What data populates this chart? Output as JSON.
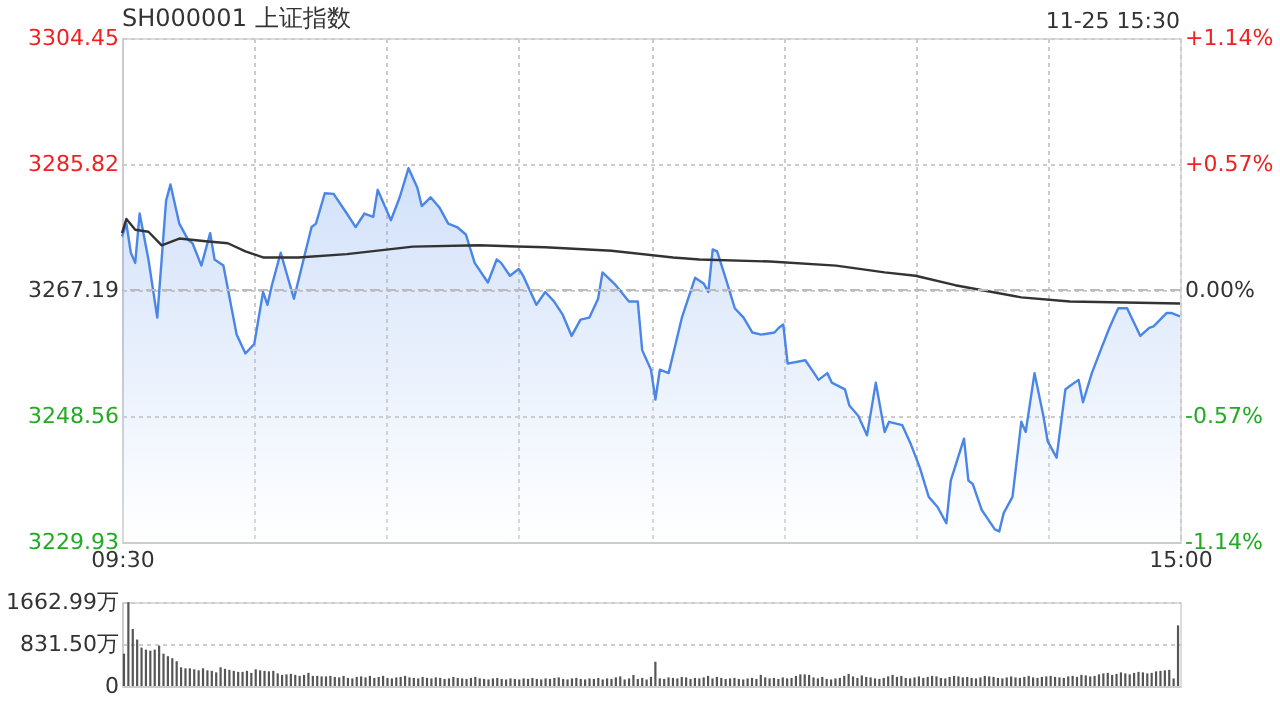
{
  "chart_data": [
    {
      "type": "line",
      "title": "SH000001 上证指数",
      "annotations": [
        "11-25 15:30"
      ],
      "categories": [
        "09:30",
        null,
        null,
        null,
        null,
        null,
        null,
        null,
        null,
        null,
        null,
        null,
        null,
        null,
        null,
        null,
        null,
        null,
        null,
        null,
        null,
        null,
        null,
        null,
        null,
        null,
        null,
        null,
        null,
        null,
        null,
        null,
        null,
        null,
        null,
        null,
        null,
        null,
        null,
        null,
        null,
        null,
        null,
        null,
        null,
        null,
        null,
        null,
        null,
        null,
        null,
        null,
        null,
        null,
        null,
        null,
        null,
        null,
        null,
        null,
        null,
        null,
        null,
        null,
        null,
        null,
        null,
        null,
        null,
        null,
        null,
        null,
        null,
        null,
        null,
        null,
        null,
        null,
        null,
        null,
        null,
        null,
        null,
        null,
        null,
        null,
        null,
        null,
        null,
        null,
        null,
        null,
        null,
        null,
        null,
        null,
        null,
        null,
        null,
        null,
        null,
        null,
        null,
        null,
        null,
        null,
        null,
        null,
        null,
        null,
        null,
        null,
        null,
        null,
        null,
        null,
        null,
        null,
        null,
        null,
        null,
        null,
        null,
        null,
        null,
        null,
        null,
        null,
        null,
        null,
        null,
        null,
        null,
        null,
        null,
        null,
        null,
        null,
        null,
        null,
        null,
        null,
        null,
        null,
        null,
        null,
        null,
        null,
        null,
        null,
        null,
        null,
        null,
        null,
        null,
        null,
        null,
        null,
        null,
        null,
        null,
        null,
        null,
        null,
        null,
        null,
        null,
        null,
        null,
        null,
        null,
        null,
        null,
        null,
        null,
        null,
        null,
        null,
        null,
        null,
        null,
        null,
        null,
        null,
        null,
        null,
        null,
        null,
        null,
        null,
        null,
        null,
        null,
        null,
        null,
        null,
        null,
        null,
        null,
        null,
        null,
        null,
        null,
        null,
        null,
        null,
        null,
        null,
        null,
        null,
        null,
        null,
        null,
        null,
        null,
        null,
        null,
        null,
        null,
        null,
        null,
        null,
        null,
        null,
        null,
        null,
        null,
        null,
        null,
        null,
        null,
        null,
        null,
        null,
        null,
        null,
        null,
        null,
        null,
        null,
        "15:00"
      ],
      "ylim": [
        3229.93,
        3304.45
      ],
      "yticks": [
        3229.93,
        3248.56,
        3267.19,
        3285.82,
        3304.45
      ],
      "y2lim": [
        -1.14,
        1.14
      ],
      "y2ticks": [
        {
          "value": -1.14,
          "label": "-1.14%"
        },
        {
          "value": -0.57,
          "label": "-0.57%"
        },
        {
          "value": 0,
          "label": "0.00%"
        },
        {
          "value": 0.57,
          "label": "+0.57%"
        },
        {
          "value": 1.14,
          "label": "+1.14%"
        }
      ],
      "grid": true,
      "ref_lines": [
        {
          "axis": "y",
          "value": 3267.19,
          "line_style": "dashed",
          "color": "#bbbbbb"
        }
      ],
      "series": [
        {
          "type": "area",
          "color": "#4a86e8",
          "values": [
            3275.1,
            3277.0,
            3272.7,
            3271.2,
            3278.5,
            null,
            3271.7,
            null,
            3263.1,
            null,
            3280.4,
            3282.8,
            null,
            3277.0,
            null,
            3274.6,
            3274.1,
            null,
            3270.8,
            null,
            3275.6,
            3271.7,
            null,
            3270.8,
            null,
            null,
            3260.6,
            null,
            3257.8,
            null,
            3259.2,
            null,
            3266.9,
            3265.0,
            3267.9,
            null,
            3272.7,
            null,
            null,
            3265.9,
            null,
            null,
            null,
            3276.5,
            3277.0,
            null,
            3281.5,
            null,
            3281.4,
            null,
            null,
            3278.5,
            null,
            3276.5,
            null,
            3278.5,
            null,
            3278.0,
            3282.0,
            null,
            null,
            3277.5,
            null,
            3280.9,
            null,
            3285.2,
            null,
            3282.3,
            3279.6,
            null,
            3280.9,
            null,
            3279.4,
            null,
            3277.0,
            null,
            3276.5,
            null,
            3275.4,
            null,
            3271.2,
            null,
            null,
            3268.3,
            null,
            3271.7,
            3271.2,
            null,
            3269.3,
            null,
            3270.3,
            3269.3,
            null,
            null,
            3265.0,
            null,
            3266.9,
            null,
            3265.5,
            null,
            3263.5,
            null,
            3260.4,
            null,
            3262.8,
            null,
            3263.1,
            null,
            3265.9,
            3269.8,
            null,
            null,
            3267.9,
            null,
            null,
            3265.5,
            null,
            3265.5,
            3258.3,
            null,
            3255.4,
            3251.0,
            3255.4,
            null,
            3254.9,
            null,
            null,
            3263.1,
            null,
            null,
            3269.0,
            null,
            3268.1,
            3266.9,
            3273.2,
            3272.9,
            null,
            3268.8,
            null,
            3264.5,
            null,
            3263.1,
            null,
            3260.9,
            null,
            3260.6,
            null,
            null,
            3260.9,
            3261.6,
            3262.1,
            3256.3,
            null,
            null,
            null,
            3256.8,
            null,
            3254.9,
            3253.9,
            null,
            3254.9,
            3253.5,
            null,
            null,
            3252.5,
            3250.1,
            null,
            3248.6,
            null,
            3245.7,
            null,
            3253.5,
            null,
            3246.2,
            3247.7,
            null,
            null,
            3247.2,
            null,
            3244.3,
            null,
            3240.9,
            null,
            3236.6,
            null,
            3235.1,
            null,
            3232.7,
            3239.0,
            null,
            null,
            3245.2,
            3239.0,
            3238.5,
            null,
            3234.7,
            null,
            null,
            3231.8,
            3231.5,
            3234.2,
            null,
            3236.6,
            null,
            3247.7,
            3246.2,
            null,
            3254.9,
            null,
            3248.6,
            3244.8,
            null,
            3242.4,
            null,
            3252.5,
            3253.0,
            null,
            3253.9,
            3250.6,
            null,
            3254.9,
            null,
            3258.3,
            null,
            3261.6,
            3263.1,
            3264.5,
            null,
            3264.5,
            null,
            null,
            3260.4,
            null,
            3261.6,
            3261.8,
            null,
            null,
            3263.8,
            3263.8,
            null,
            3263.3
          ]
        },
        {
          "type": "line",
          "color": "#333333",
          "values": [
            3275.6,
            3277.7,
            null,
            3276.1,
            null,
            null,
            3275.8,
            null,
            null,
            3273.8,
            null,
            null,
            null,
            3274.8,
            null,
            null,
            null,
            null,
            null,
            3274.4,
            null,
            null,
            null,
            null,
            3274.1,
            null,
            null,
            null,
            3272.9,
            null,
            null,
            null,
            3272.0,
            null,
            null,
            null,
            null,
            null,
            null,
            null,
            3272.0,
            null,
            null,
            null,
            null,
            null,
            null,
            null,
            null,
            null,
            null,
            3272.5,
            null,
            null,
            null,
            null,
            null,
            null,
            null,
            null,
            null,
            null,
            null,
            null,
            null,
            null,
            3273.6,
            null,
            null,
            null,
            null,
            null,
            null,
            null,
            null,
            null,
            null,
            null,
            null,
            null,
            null,
            3273.8,
            null,
            null,
            null,
            null,
            null,
            null,
            null,
            null,
            null,
            null,
            null,
            null,
            null,
            null,
            3273.5,
            null,
            null,
            null,
            null,
            null,
            null,
            null,
            null,
            null,
            null,
            null,
            null,
            null,
            null,
            3273.0,
            null,
            null,
            null,
            null,
            null,
            null,
            null,
            null,
            null,
            null,
            null,
            null,
            null,
            3272.0,
            null,
            null,
            null,
            null,
            null,
            3271.7,
            null,
            null,
            null,
            null,
            null,
            null,
            null,
            null,
            null,
            null,
            null,
            null,
            null,
            null,
            null,
            3271.4,
            null,
            null,
            null,
            null,
            null,
            null,
            null,
            null,
            null,
            null,
            null,
            null,
            null,
            null,
            3270.8,
            null,
            null,
            null,
            null,
            null,
            null,
            null,
            null,
            null,
            null,
            3269.8,
            null,
            null,
            null,
            null,
            null,
            null,
            3269.3,
            null,
            null,
            null,
            null,
            null,
            null,
            null,
            null,
            3267.9,
            null,
            null,
            null,
            null,
            null,
            null,
            null,
            null,
            null,
            null,
            null,
            null,
            null,
            null,
            3266.1,
            null,
            null,
            null,
            null,
            null,
            null,
            null,
            null,
            null,
            null,
            3265.5,
            null,
            null,
            null,
            null,
            null,
            null,
            null,
            null,
            null,
            null,
            null,
            null,
            null,
            null,
            null,
            null,
            null,
            null,
            null,
            null,
            null,
            null,
            null,
            null,
            3265.2
          ]
        }
      ]
    },
    {
      "type": "bar",
      "color": "#555555",
      "tick_labels": "y",
      "grid": "y",
      "ylim": [
        0,
        1662.99
      ],
      "yticks": [
        0,
        {
          "value": 831.5,
          "label": "831.50万"
        },
        {
          "value": 1662.99,
          "label": "1662.99万"
        }
      ],
      "categories": [
        null,
        null,
        null,
        null,
        null,
        null,
        null,
        null,
        null,
        null,
        null,
        null,
        null,
        null,
        null,
        null,
        null,
        null,
        null,
        null,
        null,
        null,
        null,
        null,
        null,
        null,
        null,
        null,
        null,
        null,
        null,
        null,
        null,
        null,
        null,
        null,
        null,
        null,
        null,
        null,
        null,
        null,
        null,
        null,
        null,
        null,
        null,
        null,
        null,
        null,
        null,
        null,
        null,
        null,
        null,
        null,
        null,
        null,
        null,
        null,
        null,
        null,
        null,
        null,
        null,
        null,
        null,
        null,
        null,
        null,
        null,
        null,
        null,
        null,
        null,
        null,
        null,
        null,
        null,
        null,
        null,
        null,
        null,
        null,
        null,
        null,
        null,
        null,
        null,
        null,
        null,
        null,
        null,
        null,
        null,
        null,
        null,
        null,
        null,
        null,
        null,
        null,
        null,
        null,
        null,
        null,
        null,
        null,
        null,
        null,
        null,
        null,
        null,
        null,
        null,
        null,
        null,
        null,
        null,
        null,
        null,
        null,
        null,
        null,
        null,
        null,
        null,
        null,
        null,
        null,
        null,
        null,
        null,
        null,
        null,
        null,
        null,
        null,
        null,
        null,
        null,
        null,
        null,
        null,
        null,
        null,
        null,
        null,
        null,
        null,
        null,
        null,
        null,
        null,
        null,
        null,
        null,
        null,
        null,
        null,
        null,
        null,
        null,
        null,
        null,
        null,
        null,
        null,
        null,
        null,
        null,
        null,
        null,
        null,
        null,
        null,
        null,
        null,
        null,
        null,
        null,
        null,
        null,
        null,
        null,
        null,
        null,
        null,
        null,
        null,
        null,
        null,
        null,
        null,
        null,
        null,
        null,
        null,
        null,
        null,
        null,
        null,
        null,
        null,
        null,
        null,
        null,
        null,
        null,
        null,
        null,
        null,
        null,
        null,
        null,
        null,
        null,
        null,
        null,
        null,
        null,
        null,
        null,
        null,
        null,
        null,
        null,
        null,
        null,
        null,
        null,
        null,
        null,
        null,
        null,
        null,
        null,
        null,
        null,
        null,
        null
      ],
      "values": [
        640,
        1660,
        1130,
        920,
        760,
        720,
        700,
        720,
        800,
        640,
        590,
        550,
        490,
        370,
        350,
        350,
        330,
        310,
        350,
        310,
        300,
        270,
        370,
        340,
        320,
        300,
        280,
        280,
        300,
        260,
        330,
        310,
        300,
        290,
        300,
        250,
        220,
        230,
        240,
        220,
        200,
        220,
        260,
        200,
        200,
        190,
        190,
        200,
        180,
        170,
        200,
        160,
        150,
        180,
        190,
        170,
        200,
        160,
        180,
        200,
        160,
        150,
        170,
        180,
        200,
        170,
        160,
        150,
        180,
        160,
        150,
        170,
        160,
        140,
        150,
        180,
        160,
        150,
        140,
        160,
        180,
        150,
        140,
        130,
        150,
        160,
        140,
        130,
        150,
        140,
        130,
        150,
        140,
        160,
        140,
        130,
        150,
        140,
        160,
        170,
        140,
        130,
        150,
        160,
        140,
        130,
        150,
        140,
        160,
        130,
        150,
        140,
        170,
        190,
        130,
        150,
        220,
        140,
        160,
        130,
        180,
        480,
        150,
        140,
        170,
        160,
        150,
        180,
        170,
        140,
        160,
        150,
        170,
        200,
        150,
        180,
        160,
        140,
        150,
        160,
        140,
        130,
        150,
        160,
        140,
        220,
        170,
        150,
        160,
        140,
        170,
        150,
        160,
        200,
        230,
        230,
        220,
        170,
        150,
        180,
        140,
        130,
        150,
        160,
        200,
        240,
        190,
        160,
        210,
        180,
        170,
        150,
        140,
        160,
        190,
        220,
        180,
        200,
        160,
        150,
        170,
        190,
        160,
        180,
        200,
        190,
        160,
        150,
        180,
        200,
        190,
        170,
        180,
        160,
        150,
        170,
        200,
        190,
        180,
        160,
        150,
        170,
        190,
        170,
        160,
        180,
        200,
        170,
        160,
        180,
        190,
        200,
        180,
        170,
        160,
        190,
        200,
        180,
        220,
        210,
        190,
        200,
        230,
        250,
        260,
        220,
        240,
        270,
        250,
        230,
        260,
        280,
        270,
        250,
        260,
        290,
        300,
        310,
        320,
        150,
        1200
      ]
    }
  ]
}
